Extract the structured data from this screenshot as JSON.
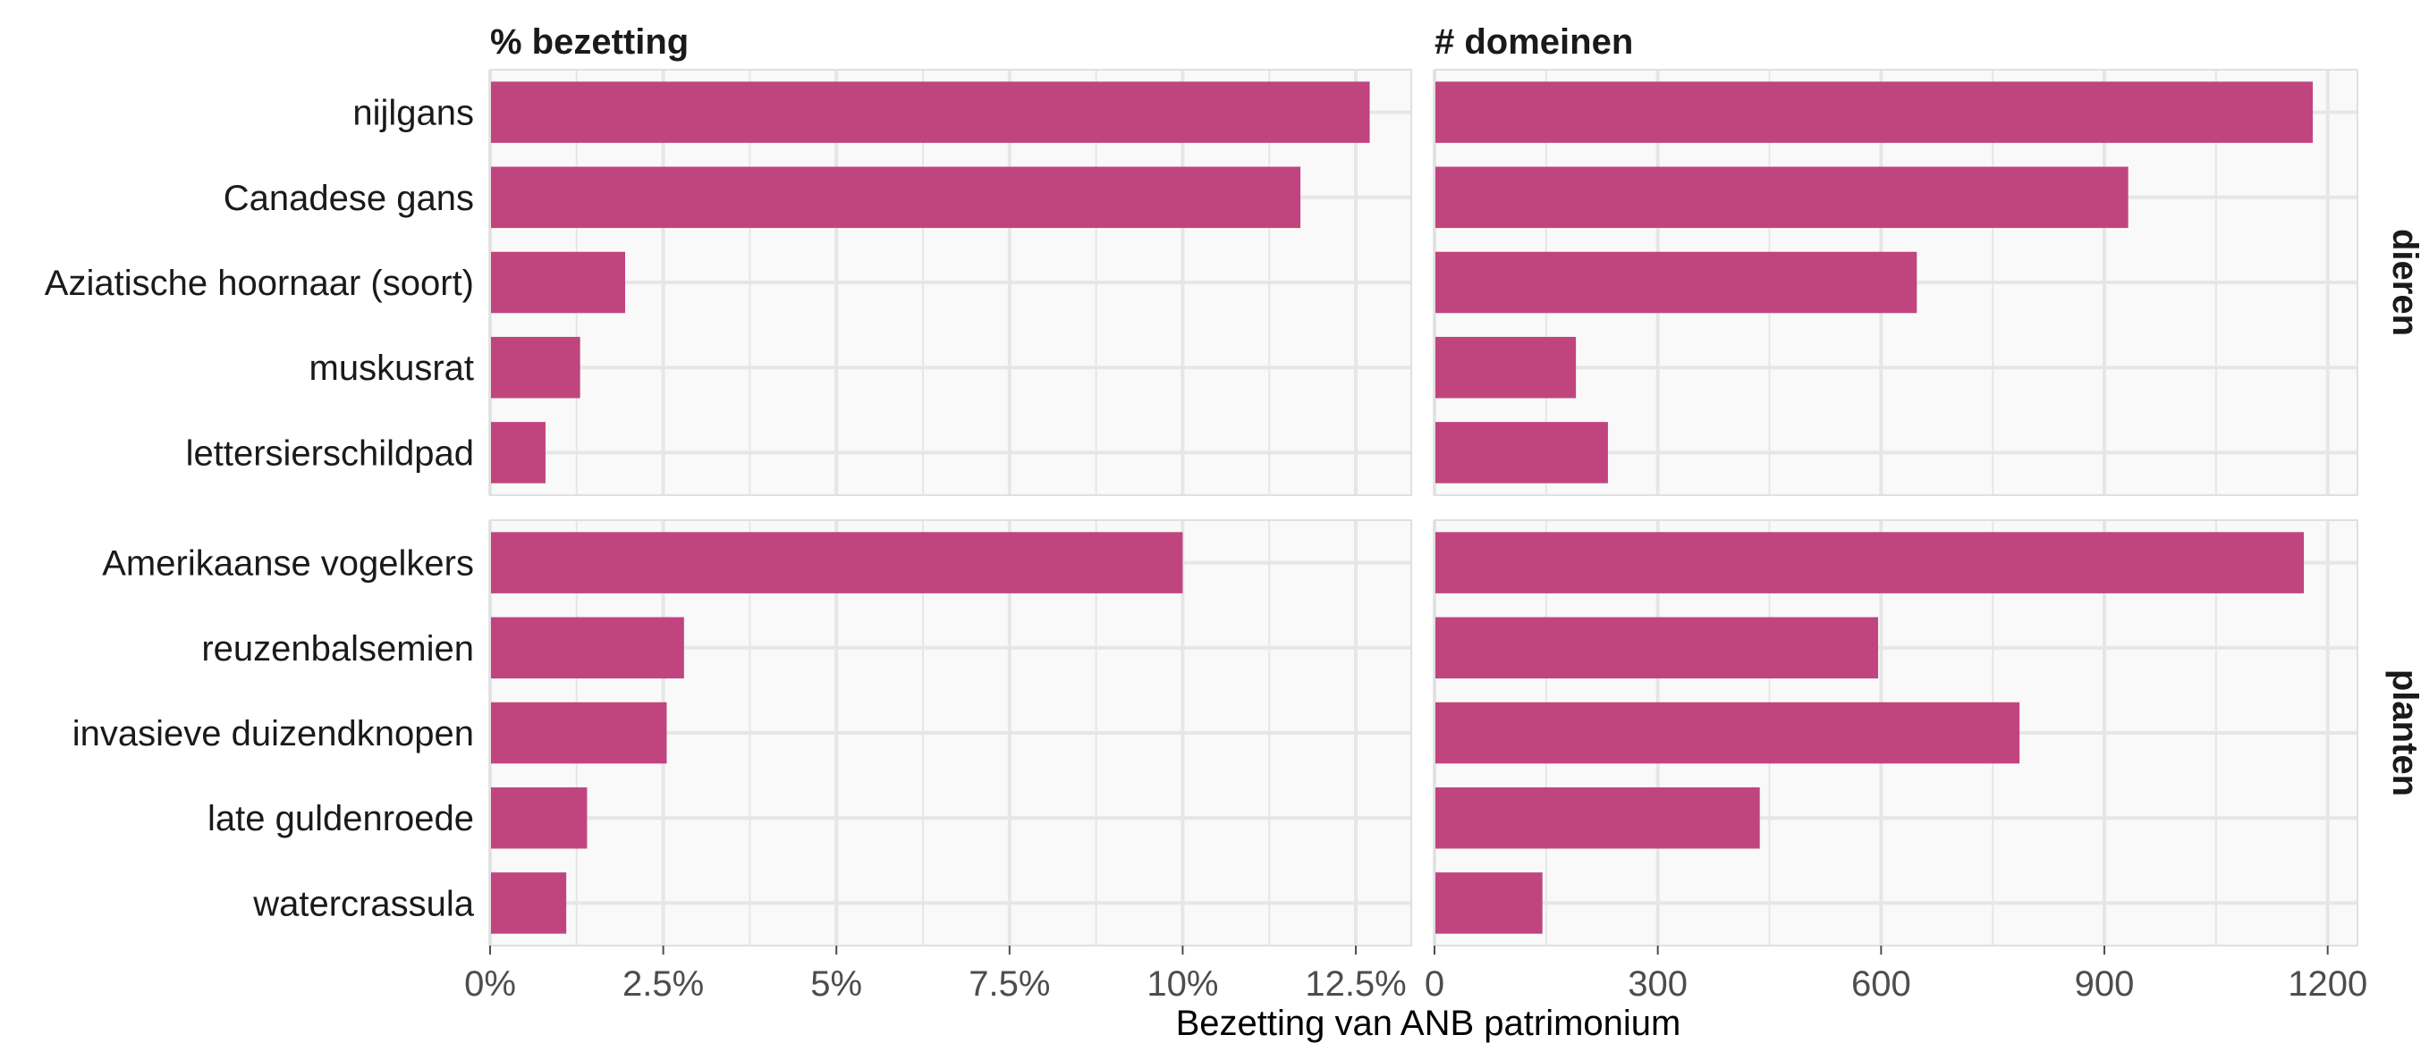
{
  "chart_data": {
    "type": "bar",
    "orientation": "horizontal",
    "xlabel": "Bezetting van ANB patrimonium",
    "grid": true,
    "bar_color": "#C0457F",
    "panel_background": "#F9F9F9",
    "grid_color": "#E6E6E6",
    "columns": [
      {
        "title": "% bezetting",
        "xlim": [
          0,
          13.3
        ],
        "ticks": [
          0,
          2.5,
          5,
          7.5,
          10,
          12.5
        ],
        "tick_labels": [
          "0%",
          "2.5%",
          "5%",
          "7.5%",
          "10%",
          "12.5%"
        ]
      },
      {
        "title": "# domeinen",
        "xlim": [
          0,
          1240
        ],
        "ticks": [
          0,
          300,
          600,
          900,
          1200
        ],
        "tick_labels": [
          "0",
          "300",
          "600",
          "900",
          "1200"
        ]
      }
    ],
    "rows": [
      {
        "facet": "dieren",
        "categories": [
          "nijlgans",
          "Canadese gans",
          "Aziatische hoornaar (soort)",
          "muskusrat",
          "lettersierschildpad"
        ],
        "values_percent": [
          12.7,
          11.7,
          1.95,
          1.3,
          0.8
        ],
        "values_domains": [
          1180,
          932,
          648,
          190,
          233
        ]
      },
      {
        "facet": "planten",
        "categories": [
          "Amerikaanse vogelkers",
          "reuzenbalsemien",
          "invasieve duizendknopen",
          "late guldenroede",
          "watercrassula"
        ],
        "values_percent": [
          10.0,
          2.8,
          2.55,
          1.4,
          1.1
        ],
        "values_domains": [
          1168,
          596,
          786,
          437,
          145
        ]
      }
    ]
  }
}
